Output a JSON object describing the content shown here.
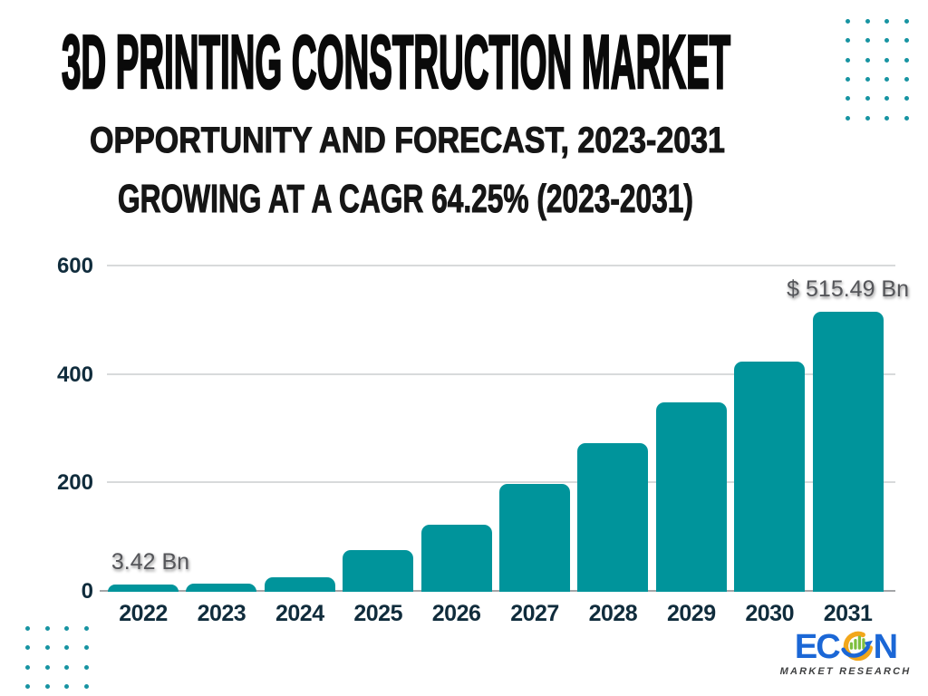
{
  "header": {
    "title": "3D PRINTING CONSTRUCTION MARKET",
    "subtitle_line1": "OPPORTUNITY AND FORECAST, 2023-2031",
    "subtitle_line2": "GROWING AT A CAGR 64.25% (2023-2031)"
  },
  "chart_data": {
    "type": "bar",
    "title": "3D Printing Construction Market",
    "categories": [
      "2022",
      "2023",
      "2024",
      "2025",
      "2026",
      "2027",
      "2028",
      "2029",
      "2030",
      "2031"
    ],
    "values": [
      3.42,
      13,
      25,
      75,
      122,
      197,
      273,
      348,
      423,
      515.49
    ],
    "unit": "Bn",
    "xlabel": "",
    "ylabel": "",
    "ylim": [
      0,
      600
    ],
    "yticks": [
      0,
      200,
      400,
      600
    ],
    "grid": "horizontal",
    "legend": "none",
    "bar_color": "#00949b",
    "annotations": [
      {
        "category": "2022",
        "index": 0,
        "text": "3.42 Bn"
      },
      {
        "category": "2031",
        "index": 9,
        "text": "$ 515.49 Bn"
      }
    ]
  },
  "decorations": {
    "dot_color": "#1794a2",
    "top_right_dots": {
      "rows": 6,
      "cols": 4
    },
    "bottom_left_dots": {
      "rows": 4,
      "cols": 4
    }
  },
  "logo": {
    "text_ec": "EC",
    "text_n": "N",
    "tagline": "MARKET RESEARCH",
    "blue": "#1b67d6",
    "gold": "#f2a71b",
    "green": "#7fbf3f",
    "tagline_color": "#3f4041"
  },
  "colors": {
    "background": "#ffffff",
    "title_text": "#0a0a0a",
    "axis_label": "#102c3c",
    "grid_line": "#d8dadb",
    "baseline": "#a4a6a8",
    "data_label": "#55565a"
  }
}
